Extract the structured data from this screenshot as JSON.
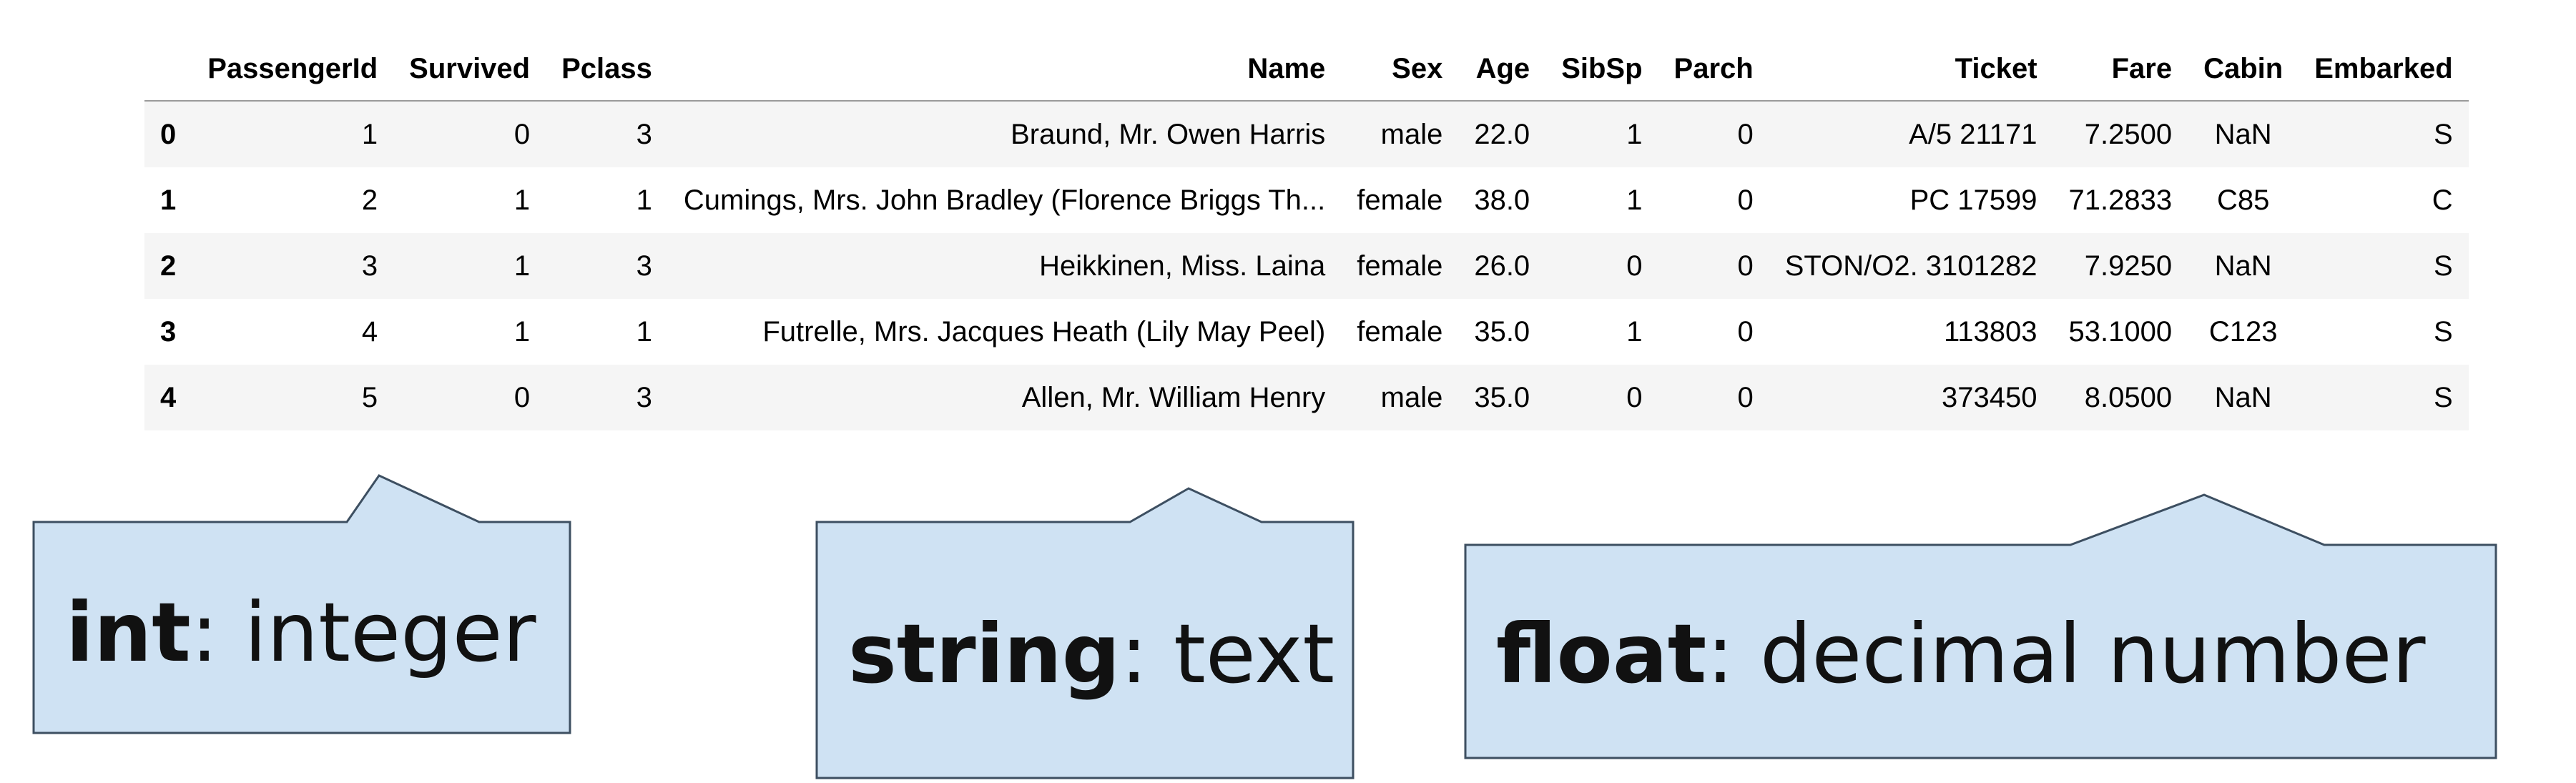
{
  "table": {
    "columns": [
      "",
      "PassengerId",
      "Survived",
      "Pclass",
      "Name",
      "Sex",
      "Age",
      "SibSp",
      "Parch",
      "Ticket",
      "Fare",
      "Cabin",
      "Embarked"
    ],
    "rows": [
      [
        "0",
        "1",
        "0",
        "3",
        "Braund, Mr. Owen Harris",
        "male",
        "22.0",
        "1",
        "0",
        "A/5 21171",
        "7.2500",
        "NaN",
        "S"
      ],
      [
        "1",
        "2",
        "1",
        "1",
        "Cumings, Mrs. John Bradley (Florence Briggs Th...",
        "female",
        "38.0",
        "1",
        "0",
        "PC 17599",
        "71.2833",
        "C85",
        "C"
      ],
      [
        "2",
        "3",
        "1",
        "3",
        "Heikkinen, Miss. Laina",
        "female",
        "26.0",
        "0",
        "0",
        "STON/O2. 3101282",
        "7.9250",
        "NaN",
        "S"
      ],
      [
        "3",
        "4",
        "1",
        "1",
        "Futrelle, Mrs. Jacques Heath (Lily May Peel)",
        "female",
        "35.0",
        "1",
        "0",
        "113803",
        "53.1000",
        "C123",
        "S"
      ],
      [
        "4",
        "5",
        "0",
        "3",
        "Allen, Mr. William Henry",
        "male",
        "35.0",
        "0",
        "0",
        "373450",
        "8.0500",
        "NaN",
        "S"
      ]
    ]
  },
  "callouts": [
    {
      "term": "int",
      "desc": ": integer"
    },
    {
      "term": "string",
      "desc": ": text"
    },
    {
      "term": "float",
      "desc": ": decimal number"
    }
  ],
  "colors": {
    "callout_fill": "#cfe2f3",
    "callout_stroke": "#3d4f61",
    "header_rule": "#9a9a9a",
    "striped_row": "#f5f5f5"
  }
}
